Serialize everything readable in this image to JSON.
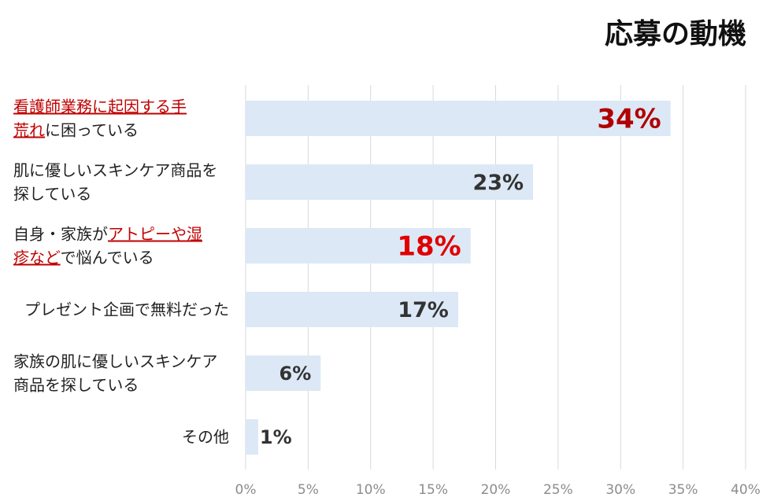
{
  "chart_data": {
    "type": "bar",
    "orientation": "horizontal",
    "title": "応募の動機",
    "categories": [
      {
        "lines": [
          [
            {
              "t": "看護師業務に起因する手",
              "hl": true
            }
          ],
          [
            {
              "t": "荒れ",
              "hl": true
            },
            {
              "t": "に困っている",
              "hl": false
            }
          ]
        ]
      },
      {
        "lines": [
          [
            {
              "t": "肌に優しいスキンケア商品を",
              "hl": false
            }
          ],
          [
            {
              "t": "探している",
              "hl": false
            }
          ]
        ]
      },
      {
        "lines": [
          [
            {
              "t": "自身・家族が",
              "hl": false
            },
            {
              "t": "アトピーや湿",
              "hl": true
            }
          ],
          [
            {
              "t": "疹など",
              "hl": true
            },
            {
              "t": "で悩んでいる",
              "hl": false
            }
          ]
        ]
      },
      {
        "lines": [
          [
            {
              "t": "プレゼント企画で無料だった",
              "hl": false
            }
          ]
        ]
      },
      {
        "lines": [
          [
            {
              "t": "家族の肌に優しいスキンケア",
              "hl": false
            }
          ],
          [
            {
              "t": "商品を探している",
              "hl": false
            }
          ]
        ]
      },
      {
        "lines": [
          [
            {
              "t": "その他",
              "hl": false
            }
          ]
        ]
      }
    ],
    "values": [
      34,
      23,
      18,
      17,
      6,
      1
    ],
    "value_labels": [
      "34%",
      "23%",
      "18%",
      "17%",
      "6%",
      "1%"
    ],
    "label_colors": [
      "#b00000",
      "#333333",
      "#e00000",
      "#333333",
      "#333333",
      "#333333"
    ],
    "bar_color": "#dce8f6",
    "highlight_color": "#c00000",
    "xlim": [
      0,
      40
    ],
    "xticks": [
      0,
      5,
      10,
      15,
      20,
      25,
      30,
      35,
      40
    ],
    "xtick_labels": [
      "0%",
      "5%",
      "10%",
      "15%",
      "20%",
      "25%",
      "30%",
      "35%",
      "40%"
    ],
    "xlabel": "",
    "ylabel": "",
    "grid": "vertical",
    "legend": "none"
  }
}
